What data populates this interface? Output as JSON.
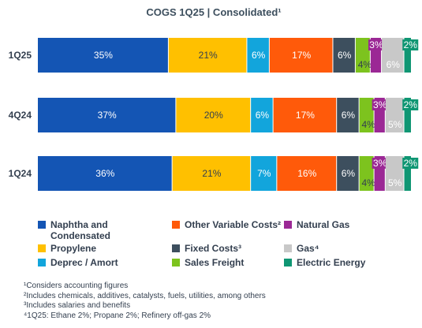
{
  "chart_data": {
    "type": "bar",
    "orientation": "horizontal",
    "stacked": true,
    "title": "COGS 1Q25 | Consolidated¹",
    "categories": [
      "1Q25",
      "4Q24",
      "1Q24"
    ],
    "xlim": [
      0,
      100
    ],
    "grid": false,
    "legend_position": "bottom",
    "series": [
      {
        "name": "Naphtha and Condensated",
        "color": "#1455b4",
        "values": [
          35,
          37,
          36
        ],
        "labels": [
          "35%",
          "37%",
          "36%"
        ]
      },
      {
        "name": "Propylene",
        "color": "#ffc000",
        "values": [
          21,
          20,
          21
        ],
        "labels": [
          "21%",
          "20%",
          "21%"
        ]
      },
      {
        "name": "Deprec / Amort",
        "color": "#12a5dc",
        "values": [
          6,
          6,
          7
        ],
        "labels": [
          "6%",
          "6%",
          "7%"
        ]
      },
      {
        "name": "Other Variable Costs²",
        "color": "#ff5a0a",
        "values": [
          17,
          17,
          16
        ],
        "labels": [
          "17%",
          "17%",
          "16%"
        ]
      },
      {
        "name": "Fixed Costs³",
        "color": "#3d4f5e",
        "values": [
          6,
          6,
          6
        ],
        "labels": [
          "6%",
          "6%",
          "6%"
        ]
      },
      {
        "name": "Sales Freight",
        "color": "#7dc31e",
        "values": [
          4,
          4,
          4
        ],
        "labels": [
          "4%",
          "4%",
          "4%"
        ]
      },
      {
        "name": "Natural Gas",
        "color": "#9b2895",
        "values": [
          3,
          3,
          3
        ],
        "labels": [
          "3%",
          "3%",
          "3%"
        ]
      },
      {
        "name": "Gas⁴",
        "color": "#c8c8c8",
        "values": [
          6,
          5,
          5
        ],
        "labels": [
          "6%",
          "5%",
          "5%"
        ]
      },
      {
        "name": "Electric Energy",
        "color": "#0f9673",
        "values": [
          2,
          2,
          2
        ],
        "labels": [
          "2%",
          "2%",
          "2%"
        ]
      }
    ]
  },
  "legend_layout": [
    [
      "Naphtha and Condensated",
      "Other Variable Costs²",
      "Natural Gas"
    ],
    [
      "Propylene",
      "Fixed Costs³",
      "Gas⁴"
    ],
    [
      "Deprec / Amort",
      "Sales Freight",
      "Electric Energy"
    ]
  ],
  "colors": {
    "title": "#3d4f5e",
    "text": "#333f4f",
    "label_dark": "#333f4f",
    "label_light": "#ffffff"
  },
  "footnotes": [
    "¹Considers accounting figures",
    "²Includes chemicals, additives, catalysts, fuels, utilities, among others",
    "³Includes salaries and benefits",
    "⁴1Q25: Ethane 2%; Propane 2%; Refinery off-gas 2%"
  ]
}
